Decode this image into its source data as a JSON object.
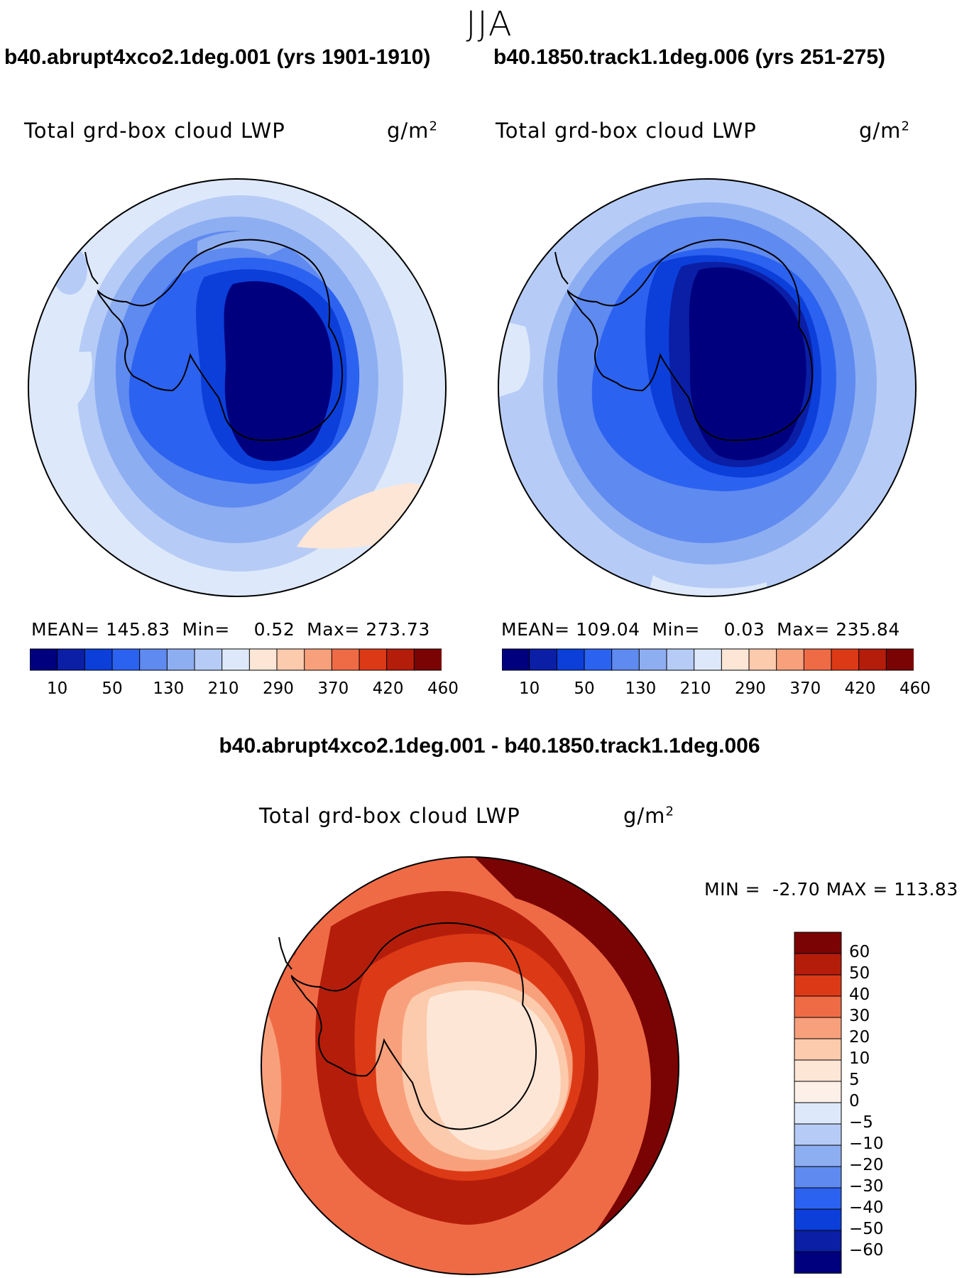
{
  "page_title": "JJA",
  "panels": [
    {
      "case_title": "b40.abrupt4xco2.1deg.001 (yrs 1901-1910)",
      "variable": "Total grd-box cloud LWP",
      "units_base": "g/m",
      "units_exp": "2",
      "mean_label": "MEAN=",
      "mean": "145.83",
      "min_label": "Min=",
      "min": "0.52",
      "max_label": "Max=",
      "max": "273.73"
    },
    {
      "case_title": "b40.1850.track1.1deg.006 (yrs 251-275)",
      "variable": "Total grd-box cloud LWP",
      "units_base": "g/m",
      "units_exp": "2",
      "mean_label": "MEAN=",
      "mean": "109.04",
      "min_label": "Min=",
      "min": "0.03",
      "max_label": "Max=",
      "max": "235.84"
    }
  ],
  "diff_panel": {
    "title": "b40.abrupt4xco2.1deg.001 - b40.1850.track1.1deg.006",
    "variable": "Total grd-box cloud LWP",
    "units_base": "g/m",
    "units_exp": "2",
    "min_label": "MIN =",
    "min": "-2.70",
    "max_label": "MAX =",
    "max": "113.83"
  },
  "chart_data": [
    {
      "type": "heatmap",
      "projection": "south polar stereographic",
      "title": "b40.abrupt4xco2.1deg.001 (yrs 1901-1910)",
      "field": "Total grd-box cloud LWP",
      "units": "g/m^2",
      "mean": 145.83,
      "min": 0.52,
      "max": 273.73,
      "colorbar_ticks": [
        10,
        50,
        130,
        210,
        290,
        370,
        420,
        460
      ],
      "colorbar_colors": [
        "#00007f",
        "#0a1fa6",
        "#0c3fd9",
        "#2c62f0",
        "#5f8aef",
        "#8eaef2",
        "#b6ccf6",
        "#dde9fa",
        "#fde6d6",
        "#fccaac",
        "#f8a07c",
        "#ef6b46",
        "#dc3a16",
        "#b51d0b",
        "#7a0403"
      ]
    },
    {
      "type": "heatmap",
      "projection": "south polar stereographic",
      "title": "b40.1850.track1.1deg.006 (yrs 251-275)",
      "field": "Total grd-box cloud LWP",
      "units": "g/m^2",
      "mean": 109.04,
      "min": 0.03,
      "max": 235.84,
      "colorbar_ticks": [
        10,
        50,
        130,
        210,
        290,
        370,
        420,
        460
      ],
      "colorbar_colors": [
        "#00007f",
        "#0a1fa6",
        "#0c3fd9",
        "#2c62f0",
        "#5f8aef",
        "#8eaef2",
        "#b6ccf6",
        "#dde9fa",
        "#fde6d6",
        "#fccaac",
        "#f8a07c",
        "#ef6b46",
        "#dc3a16",
        "#b51d0b",
        "#7a0403"
      ]
    },
    {
      "type": "heatmap",
      "projection": "south polar stereographic",
      "title": "b40.abrupt4xco2.1deg.001 - b40.1850.track1.1deg.006",
      "field": "Total grd-box cloud LWP",
      "units": "g/m^2",
      "min": -2.7,
      "max": 113.83,
      "colorbar_ticks": [
        60,
        50,
        40,
        30,
        20,
        10,
        5,
        0,
        -5,
        -10,
        -20,
        -30,
        -40,
        -50,
        -60
      ],
      "colorbar_colors": [
        "#7a0403",
        "#b51d0b",
        "#dc3a16",
        "#ef6b46",
        "#f8a07c",
        "#fccaac",
        "#fde6d6",
        "#fdf0e8",
        "#dde9fa",
        "#b6ccf6",
        "#8eaef2",
        "#5f8aef",
        "#2c62f0",
        "#0c3fd9",
        "#0a1fa6",
        "#00007f"
      ]
    }
  ]
}
